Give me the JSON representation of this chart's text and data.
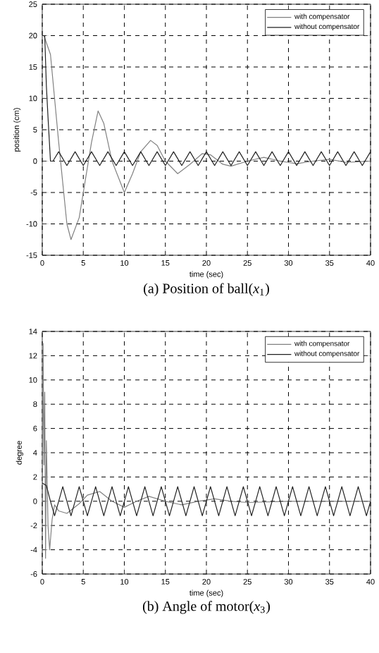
{
  "chart_data": [
    {
      "type": "line",
      "title": "(a) Position of ball(*x*$_{1}$)",
      "xlabel": "time (sec)",
      "ylabel": "position (cm)",
      "xlim": [
        0,
        40
      ],
      "ylim": [
        -15,
        25
      ],
      "xticks": [
        0,
        5,
        10,
        15,
        20,
        25,
        30,
        35,
        40
      ],
      "yticks": [
        -15,
        -10,
        -5,
        0,
        5,
        10,
        15,
        20,
        25
      ],
      "grid": true,
      "legend": "top right",
      "marker": "none",
      "line_style": "solid",
      "series": [
        {
          "name": "with compensator",
          "color": "#808080",
          "x": [
            0,
            0.2,
            1,
            2,
            3,
            3.5,
            4.5,
            5,
            6,
            6.8,
            7.5,
            8.5,
            10,
            11,
            12,
            13.2,
            14,
            15,
            16.5,
            18,
            19.5,
            20.5,
            22,
            23,
            25,
            27,
            29,
            31,
            33,
            35,
            37,
            40
          ],
          "values": [
            20,
            20,
            17,
            3,
            -10,
            -12.5,
            -9,
            -5,
            3,
            8,
            6,
            0,
            -5,
            -2,
            1.5,
            3.3,
            2.5,
            0,
            -2,
            -0.5,
            1.2,
            1,
            -0.5,
            -0.8,
            0,
            0.6,
            0,
            -0.4,
            0,
            0.3,
            -0.2,
            0
          ]
        },
        {
          "name": "without compensator",
          "color": "#202020",
          "x": [
            0,
            0.3,
            0.5,
            0.7,
            1,
            1.3,
            2,
            3,
            4,
            5,
            6,
            7,
            8,
            9,
            10,
            11,
            12,
            13,
            14,
            15,
            16,
            17,
            18,
            19,
            20,
            21,
            22,
            23,
            24,
            25,
            26,
            27,
            28,
            29,
            30,
            31,
            32,
            33,
            34,
            35,
            36,
            37,
            38,
            39,
            40
          ],
          "values": [
            20,
            20,
            12,
            7,
            0,
            0,
            1.5,
            -0.7,
            1.5,
            -0.7,
            1.5,
            -0.7,
            1.5,
            -0.7,
            1.5,
            -0.7,
            1.5,
            -0.7,
            1.5,
            -0.7,
            1.5,
            -0.7,
            1.5,
            -0.7,
            1.5,
            -0.7,
            1.5,
            -0.7,
            1.5,
            -0.7,
            1.5,
            -0.7,
            1.5,
            -0.7,
            1.5,
            -0.7,
            1.5,
            -0.7,
            1.5,
            -0.7,
            1.5,
            -0.7,
            1.5,
            -0.7,
            1.5
          ]
        }
      ]
    },
    {
      "type": "line",
      "title": "(b) Angle of motor(*x*$_{3}$)",
      "xlabel": "time (sec)",
      "ylabel": "degree",
      "xlim": [
        0,
        40
      ],
      "ylim": [
        -6,
        14
      ],
      "xticks": [
        0,
        5,
        10,
        15,
        20,
        25,
        30,
        35,
        40
      ],
      "yticks": [
        -6,
        -4,
        -2,
        0,
        2,
        4,
        6,
        8,
        10,
        12,
        14
      ],
      "grid": true,
      "legend": "top right",
      "marker": "none",
      "line_style": "solid",
      "series": [
        {
          "name": "with compensator",
          "color": "#808080",
          "x": [
            0,
            0.1,
            0.2,
            0.3,
            0.4,
            0.5,
            0.7,
            0.9,
            1.2,
            1.5,
            2,
            3,
            4.5,
            5.5,
            7,
            8.5,
            10,
            11.5,
            13,
            15,
            17,
            19,
            21,
            23,
            25,
            30,
            40
          ],
          "values": [
            0,
            13,
            3,
            9,
            -4.7,
            5,
            -2,
            -4,
            -1.5,
            -0.3,
            -0.8,
            -1,
            -0.2,
            0.5,
            0.8,
            0,
            -0.5,
            0,
            0.4,
            0,
            -0.3,
            0,
            0.2,
            0,
            -0.1,
            0,
            0
          ]
        },
        {
          "name": "without compensator",
          "color": "#202020",
          "x": [
            0,
            0.5,
            1,
            1.5,
            2,
            2.5,
            3,
            3.5,
            4,
            4.5,
            5,
            5.5,
            6,
            6.5,
            7,
            7.5,
            8,
            8.5,
            9,
            9.5,
            10,
            10.5,
            11,
            11.5,
            12,
            12.5,
            13,
            13.5,
            14,
            14.5,
            15,
            15.5,
            16,
            16.5,
            17,
            17.5,
            18,
            18.5,
            19,
            19.5,
            20,
            20.5,
            21,
            21.5,
            22,
            22.5,
            23,
            23.5,
            24,
            24.5,
            25,
            25.5,
            26,
            26.5,
            27,
            27.5,
            28,
            28.5,
            29,
            29.5,
            30,
            30.5,
            31,
            31.5,
            32,
            32.5,
            33,
            33.5,
            34,
            34.5,
            35,
            35.5,
            36,
            36.5,
            37,
            37.5,
            38,
            38.5,
            39,
            39.5,
            40
          ],
          "values": [
            1.5,
            1.3,
            0,
            -1.2,
            0,
            1.2,
            0,
            -1.2,
            0,
            1.2,
            0,
            -1.2,
            0,
            1.2,
            0,
            -1.2,
            0,
            1.2,
            0,
            -1.2,
            0,
            1.2,
            0,
            -1.2,
            0,
            1.2,
            0,
            -1.2,
            0,
            1.2,
            0,
            -1.2,
            0,
            1.2,
            0,
            -1.2,
            0,
            1.2,
            0,
            -1.2,
            0,
            1.2,
            0,
            -1.2,
            0,
            1.2,
            0,
            -1.2,
            0,
            1.2,
            0,
            -1.2,
            0,
            1.2,
            0,
            -1.2,
            0,
            1.2,
            0,
            -1.2,
            0,
            1.2,
            0,
            -1.2,
            0,
            1.2,
            0,
            -1.2,
            0,
            1.2,
            0,
            -1.2,
            0,
            1.2,
            0,
            -1.2,
            0,
            1.2,
            0,
            -1.2,
            0
          ]
        }
      ]
    }
  ]
}
